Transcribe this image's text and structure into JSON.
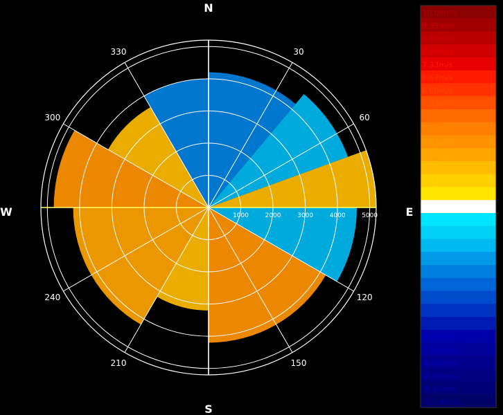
{
  "chart_data": {
    "type": "polar-heatmap",
    "title": "",
    "compass": {
      "north": "N",
      "south": "S",
      "east": "E",
      "west": "W"
    },
    "azimuth_ticks": [
      30,
      60,
      120,
      150,
      210,
      240,
      300,
      330
    ],
    "range_rings": [
      1000,
      2000,
      3000,
      4000,
      5000
    ],
    "range_max": 5200,
    "colorbar": {
      "labels": [
        "10.00m/s",
        "9.33m/s",
        "8.67m/s",
        "8.00m/s",
        "7.33m/s",
        "6.67m/s",
        "6.00m/s",
        "5.33m/s",
        "4.67m/s",
        "4.00m/s",
        "3.33m/s",
        "2.67m/s",
        "2.00m/s",
        "1.33m/s",
        "0.67m/s",
        "0.00m/s",
        "-0.67m/s",
        "-1.33m/s",
        "-2.00m/s",
        "-2.67m/s",
        "-3.33m/s",
        "-4.00m/s",
        "-4.67m/s",
        "-5.33m/s",
        "-6.00m/s",
        "-6.67m/s",
        "-7.33m/s",
        "-8.00m/s",
        "-8.67m/s",
        "-9.33m/s",
        "-10.00m/s"
      ],
      "colors": [
        "#8b0000",
        "#a00000",
        "#b80000",
        "#d00000",
        "#e60000",
        "#ff1a00",
        "#ff3300",
        "#ff5000",
        "#ff6a00",
        "#ff8000",
        "#ff9200",
        "#ffa500",
        "#ffbb00",
        "#ffd000",
        "#ffe600",
        "#ffffff",
        "#00e5ff",
        "#00d0f8",
        "#00b8f0",
        "#009ae8",
        "#0080e0",
        "#0066d8",
        "#004ccc",
        "#0033c0",
        "#001ab4",
        "#0000a8",
        "#00009a",
        "#00008c",
        "#000080",
        "#000074",
        "#000066"
      ],
      "label_colors": [
        "#b00000",
        "#c80000",
        "#d80000",
        "#e80000",
        "#ff1a00",
        "#ff3300",
        "#ff4400",
        "#ff5a00",
        "#ff7000",
        "#ff8800",
        "#ff9a00",
        "#ffad00",
        "#ffc000",
        "#ffd400",
        "#ffe600",
        "#ffffff",
        "#00e5ff",
        "#00d0f8",
        "#00b8f0",
        "#009ae8",
        "#0080e0",
        "#0066d8",
        "#004ccc",
        "#0033c0",
        "#001ab4",
        "#0000c8",
        "#0000c0",
        "#0000b8",
        "#0000b0",
        "#0000a8",
        "#0000a0"
      ]
    },
    "sectors": [
      {
        "az_from": 0,
        "az_to": 40,
        "range_max": 4200,
        "value": -3.0
      },
      {
        "az_from": 40,
        "az_to": 70,
        "range_max": 4600,
        "value": -2.0
      },
      {
        "az_from": 70,
        "az_to": 90,
        "range_max": 5200,
        "value": 1.8
      },
      {
        "az_from": 90,
        "az_to": 120,
        "range_max": 4600,
        "value": -2.2
      },
      {
        "az_from": 120,
        "az_to": 180,
        "range_max": 4200,
        "value": 3.4
      },
      {
        "az_from": 180,
        "az_to": 210,
        "range_max": 3200,
        "value": 2.0
      },
      {
        "az_from": 210,
        "az_to": 270,
        "range_max": 4200,
        "value": 2.6
      },
      {
        "az_from": 270,
        "az_to": 300,
        "range_max": 4800,
        "value": 3.6
      },
      {
        "az_from": 300,
        "az_to": 330,
        "range_max": 3600,
        "value": 1.8
      },
      {
        "az_from": 330,
        "az_to": 360,
        "range_max": 4000,
        "value": -3.4
      }
    ]
  }
}
